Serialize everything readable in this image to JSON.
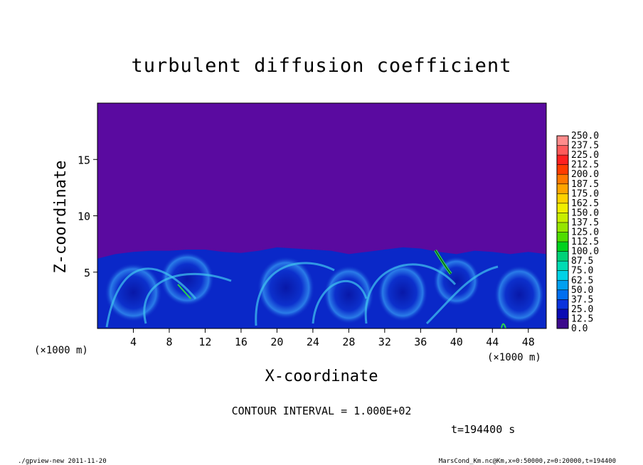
{
  "chart_data": {
    "type": "heatmap",
    "title": "turbulent diffusion coefficient",
    "xlabel": "X-coordinate",
    "ylabel": "Z-coordinate",
    "x_unit": "(×1000 m)",
    "y_unit": "(×1000 m)",
    "xlim": [
      0,
      50
    ],
    "ylim": [
      0,
      20
    ],
    "x_ticks": [
      4,
      8,
      12,
      16,
      20,
      24,
      28,
      32,
      36,
      40,
      44,
      48
    ],
    "y_ticks": [
      5,
      10,
      15
    ],
    "colorbar": {
      "labels": [
        "250.0",
        "237.5",
        "225.0",
        "212.5",
        "200.0",
        "187.5",
        "175.0",
        "162.5",
        "150.0",
        "137.5",
        "125.0",
        "112.5",
        "100.0",
        "87.5",
        "75.0",
        "62.5",
        "50.0",
        "37.5",
        "25.0",
        "12.5",
        "0.0"
      ],
      "colors": [
        "#ff8c8c",
        "#ff5a5a",
        "#ff2020",
        "#ff3c00",
        "#ff7800",
        "#ffa500",
        "#ffd200",
        "#f0ee00",
        "#c8ee00",
        "#96e600",
        "#50dc00",
        "#00d21e",
        "#00d278",
        "#00dcb4",
        "#00d2e6",
        "#00a0f0",
        "#006ef0",
        "#0a32dc",
        "#0a0ab4",
        "#3c0a8c"
      ],
      "background": "#5a0aa0",
      "base_blue": "#0a28c8"
    },
    "contour_interval": "CONTOUR INTERVAL = 1.000E+02",
    "time_label": "t=194400 s",
    "boundary_layer": {
      "x": [
        0,
        2,
        4,
        6,
        8,
        10,
        12,
        14,
        16,
        18,
        20,
        22,
        24,
        26,
        28,
        30,
        32,
        34,
        36,
        38,
        40,
        42,
        44,
        46,
        48,
        50
      ],
      "z": [
        6.2,
        6.6,
        6.8,
        6.9,
        6.9,
        7.0,
        7.0,
        6.8,
        6.7,
        6.9,
        7.2,
        7.1,
        7.0,
        6.9,
        6.6,
        6.8,
        7.0,
        7.2,
        7.1,
        6.8,
        6.6,
        6.9,
        6.8,
        6.6,
        6.8,
        6.6
      ]
    }
  },
  "footer": {
    "left": "./gpview-new   2011-11-20",
    "right": "MarsCond_Km.nc@Km,x=0:50000,z=0:20000,t=194400"
  }
}
